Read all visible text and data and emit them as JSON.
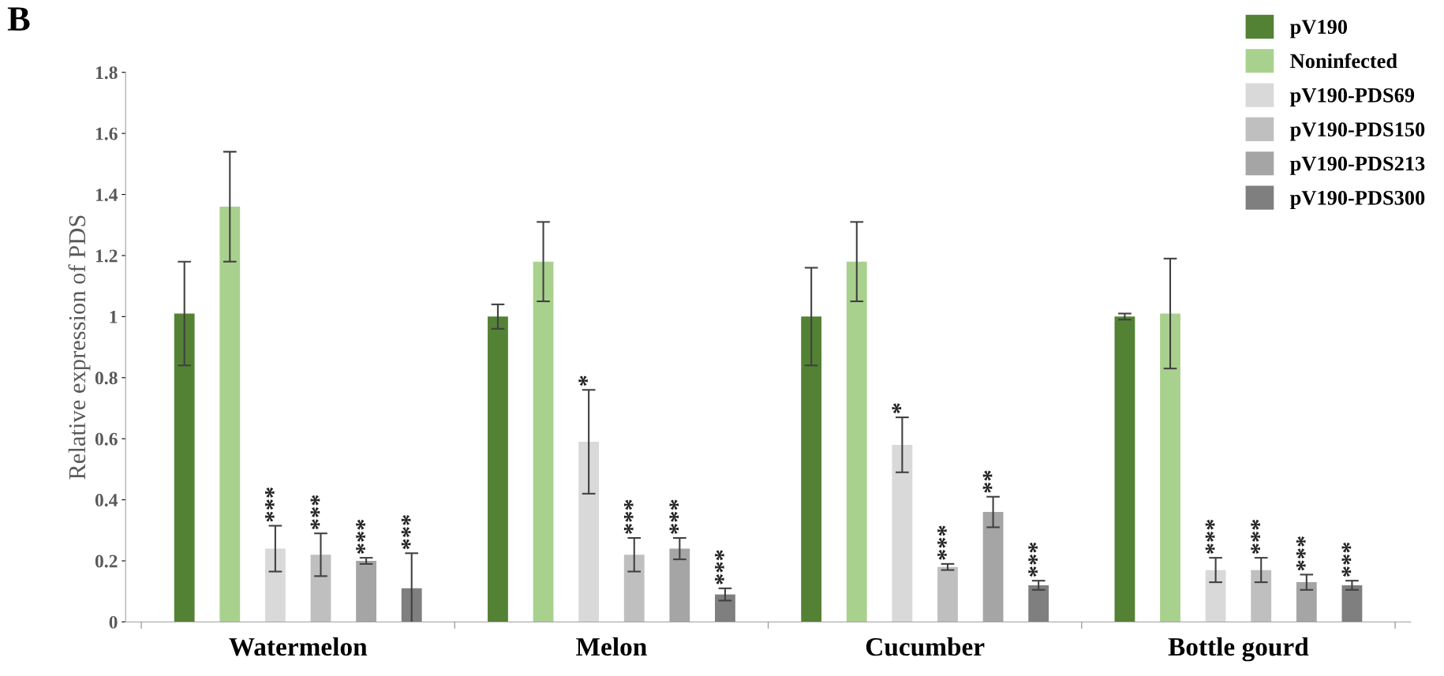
{
  "chart_data": {
    "type": "bar",
    "ylabel": "Relative expression of PDS",
    "annotations": [
      "B"
    ],
    "categories": [
      "Watermelon",
      "Melon",
      "Cucumber",
      "Bottle gourd"
    ],
    "series": [
      {
        "name": "pV190",
        "color": "#548235",
        "values": [
          1.01,
          1.0,
          1.0,
          1.0
        ],
        "errors": [
          0.17,
          0.04,
          0.16,
          0.01
        ]
      },
      {
        "name": "Noninfected",
        "color": "#a9d18e",
        "values": [
          1.36,
          1.18,
          1.18,
          1.01
        ],
        "errors": [
          0.18,
          0.13,
          0.13,
          0.18
        ]
      },
      {
        "name": "pV190-PDS69",
        "color": "#d9d9d9",
        "values": [
          0.24,
          0.59,
          0.58,
          0.17
        ],
        "errors": [
          0.075,
          0.17,
          0.09,
          0.04
        ],
        "value_labels": [
          "***",
          "*",
          "*",
          "***"
        ]
      },
      {
        "name": "pV190-PDS150",
        "color": "#bfbfbf",
        "values": [
          0.22,
          0.22,
          0.18,
          0.17
        ],
        "errors": [
          0.07,
          0.055,
          0.01,
          0.04
        ],
        "value_labels": [
          "***",
          "***",
          "***",
          "***"
        ]
      },
      {
        "name": "pV190-PDS213",
        "color": "#a5a5a5",
        "values": [
          0.2,
          0.24,
          0.36,
          0.13
        ],
        "errors": [
          0.01,
          0.035,
          0.05,
          0.025
        ],
        "value_labels": [
          "***",
          "***",
          "**",
          "***"
        ]
      },
      {
        "name": "pV190-PDS300",
        "color": "#7f7f7f",
        "values": [
          0.11,
          0.09,
          0.12,
          0.12
        ],
        "errors": [
          0.115,
          0.02,
          0.015,
          0.015
        ],
        "value_labels": [
          "***",
          "***",
          "***",
          "***"
        ]
      }
    ],
    "ylim": [
      0,
      1.8
    ],
    "yticks": [
      0,
      0.2,
      0.4,
      0.6,
      0.8,
      1,
      1.2,
      1.4,
      1.6,
      1.8
    ],
    "grid": false,
    "legend": "top right"
  }
}
